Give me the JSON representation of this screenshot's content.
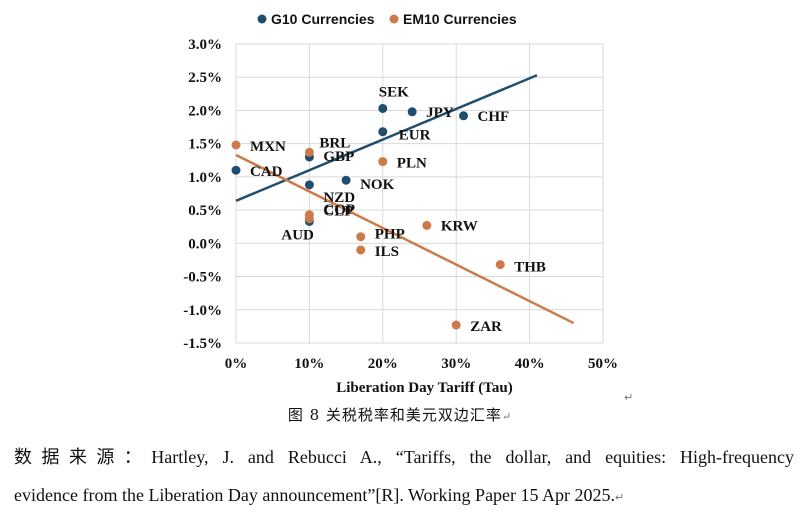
{
  "chart_data": {
    "type": "scatter",
    "xlabel": "Liberation Day Tariff (Tau)",
    "ylabel": "",
    "xlim": [
      0,
      50
    ],
    "ylim": [
      -1.5,
      3.0
    ],
    "x_ticks": [
      "0%",
      "10%",
      "20%",
      "30%",
      "40%",
      "50%"
    ],
    "y_ticks": [
      "3.0%",
      "2.5%",
      "2.0%",
      "1.5%",
      "1.0%",
      "0.5%",
      "0.0%",
      "-0.5%",
      "-1.0%",
      "-1.5%"
    ],
    "legend_position": "top",
    "grid": true,
    "series": [
      {
        "name": "G10 Currencies",
        "color": "#1f4e6e",
        "points": [
          {
            "label": "CAD",
            "x": 0.0,
            "y": 1.1
          },
          {
            "label": "GBP",
            "x": 10.0,
            "y": 1.3
          },
          {
            "label": "NZD",
            "x": 10.0,
            "y": 0.88
          },
          {
            "label": "AUD",
            "x": 10.0,
            "y": 0.33
          },
          {
            "label": "NOK",
            "x": 15.0,
            "y": 0.95
          },
          {
            "label": "EUR",
            "x": 20.0,
            "y": 1.68
          },
          {
            "label": "SEK",
            "x": 20.0,
            "y": 2.03
          },
          {
            "label": "JPY",
            "x": 24.0,
            "y": 1.98
          },
          {
            "label": "CHF",
            "x": 31.0,
            "y": 1.92
          }
        ],
        "trend": {
          "x": [
            0,
            41
          ],
          "y": [
            0.64,
            2.53
          ]
        }
      },
      {
        "name": "EM10 Currencies",
        "color": "#cc7a4a",
        "points": [
          {
            "label": "MXN",
            "x": 0.0,
            "y": 1.48
          },
          {
            "label": "BRL",
            "x": 10.0,
            "y": 1.37
          },
          {
            "label": "COP",
            "x": 10.0,
            "y": 0.43
          },
          {
            "label": "CLP",
            "x": 10.0,
            "y": 0.37
          },
          {
            "label": "PHP",
            "x": 17.0,
            "y": 0.1
          },
          {
            "label": "ILS",
            "x": 17.0,
            "y": -0.1
          },
          {
            "label": "PLN",
            "x": 20.0,
            "y": 1.23
          },
          {
            "label": "KRW",
            "x": 26.0,
            "y": 0.27
          },
          {
            "label": "THB",
            "x": 36.0,
            "y": -0.32
          },
          {
            "label": "ZAR",
            "x": 30.0,
            "y": -1.23
          }
        ],
        "trend": {
          "x": [
            0,
            46
          ],
          "y": [
            1.33,
            -1.2
          ]
        }
      }
    ]
  },
  "caption": {
    "text": "图 8   关税税率和美元双边汇率",
    "mark": "↵"
  },
  "source": {
    "line1": "数据来源：Hartley, J. and Rebucci A., “Tariffs, the dollar, and equities: High-frequency",
    "line2": "evidence from the Liberation Day announcement”[R]. Working Paper 15 Apr 2025.",
    "mark": "↵"
  },
  "stray_mark": "↵"
}
